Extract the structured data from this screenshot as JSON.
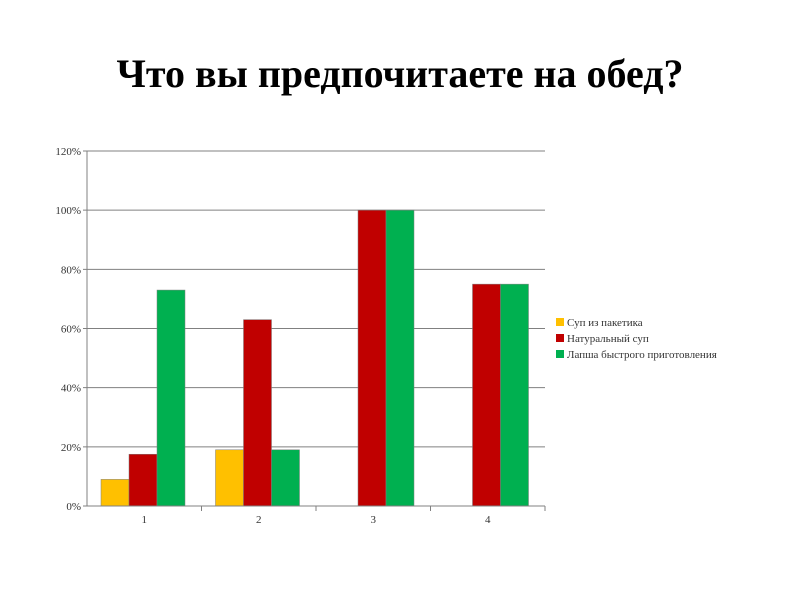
{
  "slide": {
    "title": "Что вы предпочитаете на обед?"
  },
  "chart_data": {
    "type": "bar",
    "categories": [
      "1",
      "2",
      "3",
      "4"
    ],
    "series": [
      {
        "name": "Суп из пакетика",
        "color": "#FFC000",
        "values": [
          9,
          19,
          0,
          0
        ]
      },
      {
        "name": "Натуральный суп",
        "color": "#C00000",
        "values": [
          17.5,
          63,
          100,
          75
        ]
      },
      {
        "name": "Лапша быстрого приготовления",
        "color": "#00B050",
        "values": [
          73,
          19,
          100,
          75
        ]
      }
    ],
    "ylim": [
      0,
      120
    ],
    "yticks": [
      0,
      20,
      40,
      60,
      80,
      100,
      120
    ],
    "ytick_labels": [
      "0%",
      "20%",
      "40%",
      "60%",
      "80%",
      "100%",
      "120%"
    ],
    "grid": true,
    "legend_position": "right"
  }
}
